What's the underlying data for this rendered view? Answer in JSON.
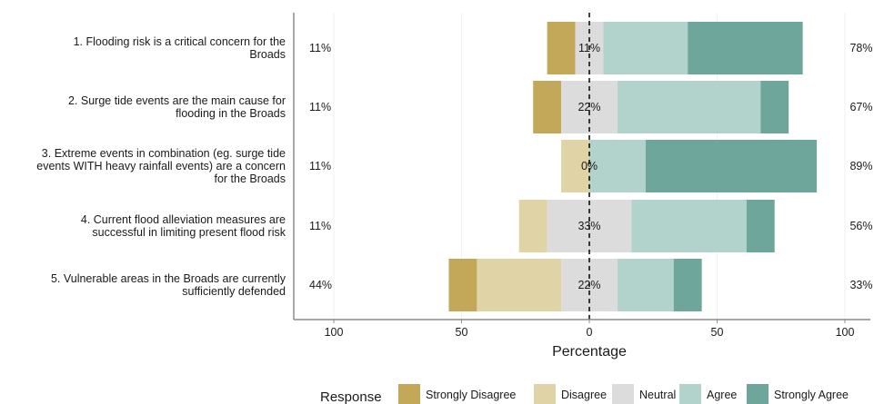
{
  "chart_data": {
    "type": "bar",
    "subtype": "diverging-stacked-likert",
    "xlabel": "Percentage",
    "xlim": [
      -100,
      100
    ],
    "x_ticks": [
      -100,
      -50,
      0,
      50,
      100
    ],
    "x_tick_labels": [
      "100",
      "50",
      "0",
      "50",
      "100"
    ],
    "grid": true,
    "legend_position": "bottom",
    "legend_title": "Response",
    "levels": [
      "Strongly Disagree",
      "Disagree",
      "Neutral",
      "Agree",
      "Strongly Agree"
    ],
    "colors": [
      "#c4a85a",
      "#e0d3a6",
      "#dcdcdc",
      "#b1d3cc",
      "#6ea69c"
    ],
    "categories": [
      "1. Flooding risk is a critical concern for the Broads",
      "2. Surge tide events are the main cause for flooding in the Broads",
      "3. Extreme events in combination (eg. surge tide events WITH heavy rainfall events) are a concern for the Broads",
      "4. Current flood alleviation measures are successful in limiting present flood risk",
      "5. Vulnerable areas in the Broads are currently sufficiently defended"
    ],
    "category_lines": [
      [
        "1. Flooding risk is a critical concern for the",
        "Broads"
      ],
      [
        "2. Surge tide events are the main cause for",
        "flooding in the Broads"
      ],
      [
        "3. Extreme events in combination (eg. surge tide",
        "events WITH heavy rainfall events) are a concern",
        "for the Broads"
      ],
      [
        "4. Current flood alleviation measures are",
        "successful in limiting present flood risk"
      ],
      [
        "5. Vulnerable areas in the Broads are currently",
        "sufficiently defended"
      ]
    ],
    "series": [
      {
        "name": "Strongly Disagree",
        "values": [
          11,
          11,
          0,
          0,
          11
        ]
      },
      {
        "name": "Disagree",
        "values": [
          0,
          0,
          11,
          11,
          33
        ]
      },
      {
        "name": "Neutral",
        "values": [
          11,
          22,
          0,
          33,
          22
        ]
      },
      {
        "name": "Agree",
        "values": [
          33,
          56,
          22,
          45,
          22
        ]
      },
      {
        "name": "Strongly Agree",
        "values": [
          45,
          11,
          67,
          11,
          11
        ]
      }
    ],
    "low_labels": [
      "11%",
      "11%",
      "11%",
      "11%",
      "44%"
    ],
    "neutral_labels": [
      "11%",
      "22%",
      "0%",
      "33%",
      "22%"
    ],
    "high_labels": [
      "78%",
      "67%",
      "89%",
      "56%",
      "33%"
    ],
    "colors_meta": {
      "axis": "#8c8c8c",
      "grid": "#ffffff",
      "panel_bg": "#ffffff",
      "zero_line": "#000000"
    }
  }
}
